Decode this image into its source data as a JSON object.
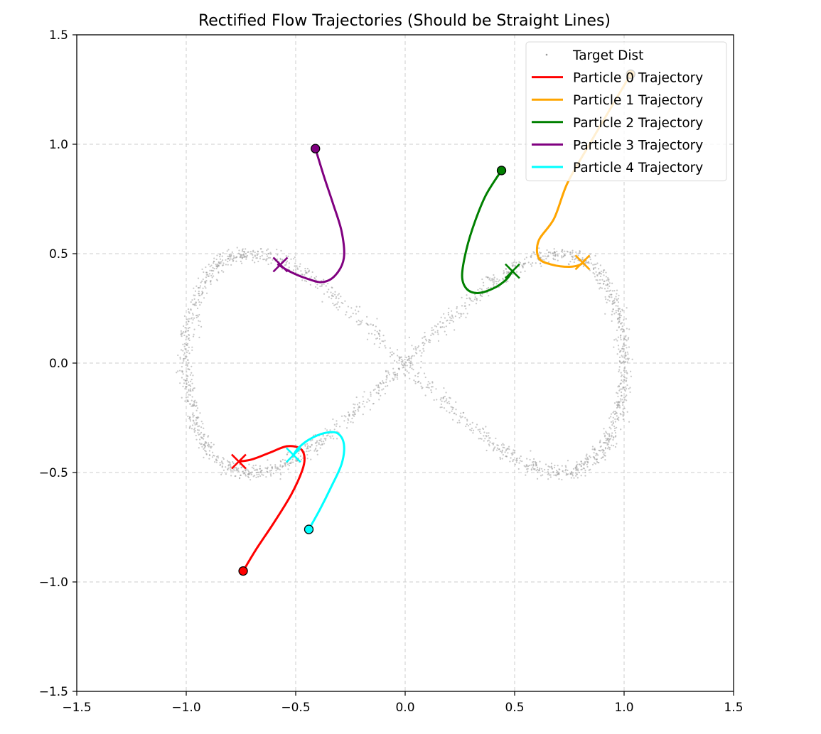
{
  "chart_data": {
    "type": "line",
    "title": "Rectified Flow Trajectories (Should be Straight Lines)",
    "xlabel": "",
    "ylabel": "",
    "xlim": [
      -1.5,
      1.5
    ],
    "ylim": [
      -1.5,
      1.5
    ],
    "xticks": [
      -1.5,
      -1.0,
      -0.5,
      0.0,
      0.5,
      1.0,
      1.5
    ],
    "yticks": [
      -1.5,
      -1.0,
      -0.5,
      0.0,
      0.5,
      1.0,
      1.5
    ],
    "xtick_labels": [
      "−1.5",
      "−1.0",
      "−0.5",
      "0.0",
      "0.5",
      "1.0",
      "1.5"
    ],
    "ytick_labels": [
      "−1.5",
      "−1.0",
      "−0.5",
      "0.0",
      "0.5",
      "1.0",
      "1.5"
    ],
    "grid": true,
    "legend_position": "top-right",
    "target_distribution": {
      "name": "Target Dist",
      "shape": "figure-eight (lemniscate)",
      "x_extent": [
        -1.0,
        1.0
      ],
      "y_extent": [
        -0.5,
        0.5
      ],
      "color": "#999999"
    },
    "series": [
      {
        "name": "Particle 0 Trajectory",
        "color": "#ff0000",
        "points": [
          [
            -0.74,
            -0.95
          ],
          [
            -0.68,
            -0.85
          ],
          [
            -0.6,
            -0.73
          ],
          [
            -0.52,
            -0.6
          ],
          [
            -0.47,
            -0.49
          ],
          [
            -0.46,
            -0.43
          ],
          [
            -0.48,
            -0.39
          ],
          [
            -0.54,
            -0.38
          ],
          [
            -0.62,
            -0.41
          ],
          [
            -0.7,
            -0.44
          ],
          [
            -0.76,
            -0.45
          ]
        ],
        "start": [
          -0.74,
          -0.95
        ],
        "end": [
          -0.76,
          -0.45
        ]
      },
      {
        "name": "Particle 1 Trajectory",
        "color": "#ffa500",
        "points": [
          [
            1.03,
            1.32
          ],
          [
            0.93,
            1.15
          ],
          [
            0.83,
            0.98
          ],
          [
            0.74,
            0.82
          ],
          [
            0.68,
            0.66
          ],
          [
            0.61,
            0.56
          ],
          [
            0.61,
            0.48
          ],
          [
            0.67,
            0.45
          ],
          [
            0.75,
            0.44
          ],
          [
            0.8,
            0.45
          ],
          [
            0.82,
            0.47
          ]
        ],
        "start": [
          1.03,
          1.32
        ],
        "end": [
          0.81,
          0.46
        ]
      },
      {
        "name": "Particle 2 Trajectory",
        "color": "#008000",
        "points": [
          [
            0.44,
            0.88
          ],
          [
            0.37,
            0.77
          ],
          [
            0.32,
            0.65
          ],
          [
            0.28,
            0.52
          ],
          [
            0.26,
            0.4
          ],
          [
            0.28,
            0.34
          ],
          [
            0.33,
            0.32
          ],
          [
            0.4,
            0.34
          ],
          [
            0.46,
            0.38
          ],
          [
            0.49,
            0.42
          ]
        ],
        "start": [
          0.44,
          0.88
        ],
        "end": [
          0.49,
          0.42
        ]
      },
      {
        "name": "Particle 3 Trajectory",
        "color": "#800080",
        "points": [
          [
            -0.41,
            0.98
          ],
          [
            -0.37,
            0.85
          ],
          [
            -0.33,
            0.73
          ],
          [
            -0.29,
            0.6
          ],
          [
            -0.28,
            0.48
          ],
          [
            -0.32,
            0.4
          ],
          [
            -0.38,
            0.37
          ],
          [
            -0.46,
            0.39
          ],
          [
            -0.53,
            0.42
          ],
          [
            -0.58,
            0.45
          ]
        ],
        "start": [
          -0.41,
          0.98
        ],
        "end": [
          -0.57,
          0.45
        ]
      },
      {
        "name": "Particle 4 Trajectory",
        "color": "#00ffff",
        "points": [
          [
            -0.44,
            -0.76
          ],
          [
            -0.39,
            -0.67
          ],
          [
            -0.34,
            -0.57
          ],
          [
            -0.29,
            -0.46
          ],
          [
            -0.28,
            -0.37
          ],
          [
            -0.31,
            -0.32
          ],
          [
            -0.37,
            -0.32
          ],
          [
            -0.44,
            -0.35
          ],
          [
            -0.49,
            -0.39
          ],
          [
            -0.51,
            -0.42
          ]
        ],
        "start": [
          -0.44,
          -0.76
        ],
        "end": [
          -0.51,
          -0.42
        ]
      }
    ]
  }
}
